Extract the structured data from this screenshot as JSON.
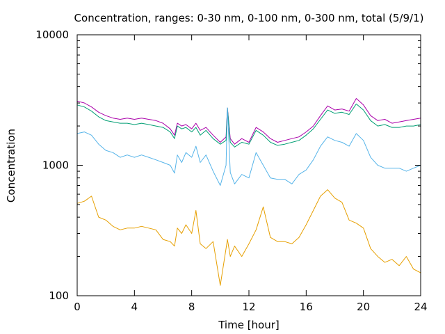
{
  "chart_data": {
    "type": "line",
    "title": "Concentration, ranges: 0-30 nm, 0-100 nm, 0-300 nm, total (5/9/1)",
    "xlabel": "Time [hour]",
    "ylabel": "Concentration",
    "xlim": [
      0,
      24
    ],
    "ylim": [
      100,
      10000
    ],
    "y_scale": "log",
    "grid": false,
    "legend": "none",
    "x_ticks": [
      "0",
      "4",
      "8",
      "12",
      "16",
      "20",
      "24"
    ],
    "x_tick_values": [
      0,
      4,
      8,
      12,
      16,
      20,
      24
    ],
    "y_ticks": [
      "100",
      "1000",
      "10000"
    ],
    "y_tick_values": [
      100,
      1000,
      10000
    ],
    "series": [
      {
        "color": "#aa00aa",
        "x": [
          0,
          0.5,
          1,
          1.5,
          2,
          2.5,
          3,
          3.5,
          4,
          4.5,
          5,
          5.5,
          6,
          6.5,
          6.8,
          7,
          7.3,
          7.6,
          8,
          8.3,
          8.6,
          9,
          9.5,
          10,
          10.4,
          10.5,
          10.7,
          11,
          11.5,
          12,
          12.5,
          13,
          13.5,
          14,
          14.5,
          15,
          15.5,
          16,
          16.5,
          17,
          17.5,
          18,
          18.5,
          19,
          19.5,
          20,
          20.5,
          21,
          21.5,
          22,
          22.5,
          23,
          23.5,
          24
        ],
        "y": [
          3100,
          3000,
          2800,
          2550,
          2400,
          2300,
          2250,
          2300,
          2250,
          2300,
          2250,
          2200,
          2100,
          1900,
          1700,
          2100,
          2000,
          2050,
          1900,
          2100,
          1850,
          1950,
          1700,
          1500,
          1650,
          2750,
          1600,
          1450,
          1600,
          1500,
          1950,
          1800,
          1600,
          1500,
          1550,
          1600,
          1650,
          1800,
          2000,
          2400,
          2850,
          2650,
          2700,
          2600,
          3250,
          2900,
          2400,
          2200,
          2250,
          2100,
          2150,
          2200,
          2250,
          2300
        ]
      },
      {
        "color": "#009e73",
        "x": [
          0,
          0.5,
          1,
          1.5,
          2,
          2.5,
          3,
          3.5,
          4,
          4.5,
          5,
          5.5,
          6,
          6.5,
          6.8,
          7,
          7.3,
          7.6,
          8,
          8.3,
          8.6,
          9,
          9.5,
          10,
          10.4,
          10.5,
          10.7,
          11,
          11.5,
          12,
          12.5,
          13,
          13.5,
          14,
          14.5,
          15,
          15.5,
          16,
          16.5,
          17,
          17.5,
          18,
          18.5,
          19,
          19.5,
          20,
          20.5,
          21,
          21.5,
          22,
          22.5,
          23,
          23.5,
          24
        ],
        "y": [
          2900,
          2800,
          2600,
          2350,
          2200,
          2150,
          2100,
          2100,
          2050,
          2100,
          2050,
          2000,
          1950,
          1800,
          1600,
          2000,
          1900,
          1950,
          1800,
          1950,
          1700,
          1850,
          1600,
          1450,
          1550,
          2750,
          1500,
          1380,
          1500,
          1450,
          1850,
          1700,
          1500,
          1420,
          1450,
          1500,
          1550,
          1700,
          1900,
          2250,
          2650,
          2500,
          2550,
          2450,
          2950,
          2650,
          2200,
          2000,
          2050,
          1950,
          1950,
          2000,
          2000,
          2050
        ]
      },
      {
        "color": "#56b4e9",
        "x": [
          0,
          0.5,
          1,
          1.5,
          2,
          2.5,
          3,
          3.5,
          4,
          4.5,
          5,
          5.5,
          6,
          6.5,
          6.8,
          7,
          7.3,
          7.6,
          8,
          8.3,
          8.6,
          9,
          9.5,
          10,
          10.4,
          10.5,
          10.7,
          11,
          11.5,
          12,
          12.5,
          13,
          13.5,
          14,
          14.5,
          15,
          15.5,
          16,
          16.5,
          17,
          17.5,
          18,
          18.5,
          19,
          19.5,
          20,
          20.5,
          21,
          21.5,
          22,
          22.5,
          23,
          23.5,
          24
        ],
        "y": [
          1750,
          1800,
          1700,
          1450,
          1300,
          1250,
          1150,
          1200,
          1150,
          1200,
          1150,
          1100,
          1050,
          1000,
          870,
          1200,
          1050,
          1250,
          1150,
          1400,
          1050,
          1200,
          900,
          700,
          1000,
          2750,
          880,
          720,
          850,
          800,
          1250,
          1000,
          800,
          780,
          780,
          720,
          850,
          920,
          1100,
          1400,
          1650,
          1550,
          1500,
          1400,
          1750,
          1550,
          1150,
          1000,
          950,
          950,
          950,
          900,
          950,
          1000
        ]
      },
      {
        "color": "#e69f00",
        "x": [
          0,
          0.5,
          1,
          1.5,
          2,
          2.5,
          3,
          3.5,
          4,
          4.5,
          5,
          5.5,
          6,
          6.5,
          6.8,
          7,
          7.3,
          7.6,
          8,
          8.3,
          8.6,
          9,
          9.5,
          10,
          10.4,
          10.5,
          10.7,
          11,
          11.5,
          12,
          12.5,
          13,
          13.5,
          14,
          14.5,
          15,
          15.5,
          16,
          16.5,
          17,
          17.5,
          18,
          18.5,
          19,
          19.5,
          20,
          20.5,
          21,
          21.5,
          22,
          22.5,
          23,
          23.5,
          24
        ],
        "y": [
          510,
          530,
          580,
          400,
          380,
          340,
          320,
          330,
          330,
          340,
          330,
          320,
          270,
          260,
          240,
          330,
          300,
          350,
          300,
          450,
          250,
          230,
          260,
          120,
          230,
          270,
          200,
          240,
          200,
          250,
          320,
          480,
          280,
          260,
          260,
          250,
          280,
          350,
          450,
          580,
          650,
          560,
          520,
          380,
          360,
          330,
          230,
          200,
          180,
          190,
          170,
          200,
          160,
          150
        ]
      }
    ]
  }
}
